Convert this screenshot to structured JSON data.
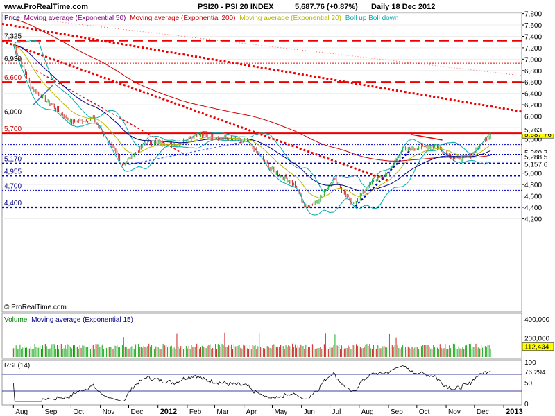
{
  "header": {
    "site": "www.ProRealTime.com",
    "title": "PSI20 - PSI 20 INDEX",
    "quote": "5,687.76 (+0.87%)",
    "period": "Daily  18 Dec 2012"
  },
  "watermark": "© ProRealTime.com",
  "legend": [
    {
      "label": "Price",
      "color": "#000080"
    },
    {
      "label": "Moving average (Exponential 50)",
      "color": "#800080"
    },
    {
      "label": "Moving average (Exponential 200)",
      "color": "#cc0000"
    },
    {
      "label": "Moving average (Exponential 20)",
      "color": "#b8b800"
    },
    {
      "label": "Boll up Boll down",
      "color": "#00aaaa"
    }
  ],
  "price_axis": {
    "ticks": [
      "7,800",
      "7,600",
      "7,400",
      "7,200",
      "7,000",
      "6,800",
      "6,600",
      "6,400",
      "6,200",
      "6,000",
      "5,800",
      "5,600",
      "5,400",
      "5,200",
      "5,000",
      "4,800",
      "4,600",
      "4,400",
      "4,200"
    ],
    "tags": [
      {
        "text": "5,687.76",
        "bg": "#ffff00",
        "fg": "#000000"
      },
      {
        "text": "5,763",
        "bg": "#ffffff",
        "fg": "#00aaaa"
      },
      {
        "text": "5,360.7",
        "bg": "#ffffff",
        "fg": "#800080"
      },
      {
        "text": "5,288.5",
        "bg": "#ffffff",
        "fg": "#cc0000"
      },
      {
        "text": "5,157.6",
        "bg": "#ffffff",
        "fg": "#00aaaa"
      }
    ]
  },
  "level_labels": [
    {
      "text": "7,325",
      "color": "#000000"
    },
    {
      "text": "6,930",
      "color": "#000000"
    },
    {
      "text": "6,600",
      "color": "#cc0000"
    },
    {
      "text": "6,000",
      "color": "#000000"
    },
    {
      "text": "5,700",
      "color": "#cc0000"
    },
    {
      "text": "5,170",
      "color": "#000080"
    },
    {
      "text": "4,955",
      "color": "#000080"
    },
    {
      "text": "4,700",
      "color": "#000080"
    },
    {
      "text": "4,400",
      "color": "#000080"
    }
  ],
  "volume_panel": {
    "legend_volume": "Volume",
    "legend_ma": "Moving average (Exponential 15)",
    "ticks": [
      "400,000",
      "200,000"
    ],
    "last": "112,434"
  },
  "rsi_panel": {
    "label": "RSI (14)",
    "ticks": [
      "100",
      "50",
      "0"
    ],
    "last": "76.294"
  },
  "months": [
    "Aug",
    "Sep",
    "Oct",
    "Nov",
    "Dec",
    "2012",
    "Feb",
    "Mar",
    "Apr",
    "May",
    "Jun",
    "Jul",
    "Aug",
    "Sep",
    "Oct",
    "Nov",
    "Dec",
    "2013"
  ],
  "chart_data": {
    "type": "line",
    "title": "PSI20 - PSI 20 INDEX",
    "approx_price_path": [
      {
        "x": "2011-08-01",
        "y": 7250
      },
      {
        "x": "2011-08-20",
        "y": 6500
      },
      {
        "x": "2011-09-10",
        "y": 6200
      },
      {
        "x": "2011-10-01",
        "y": 5900
      },
      {
        "x": "2011-10-25",
        "y": 5950
      },
      {
        "x": "2011-11-25",
        "y": 5150
      },
      {
        "x": "2011-12-20",
        "y": 5550
      },
      {
        "x": "2012-01-20",
        "y": 5500
      },
      {
        "x": "2012-02-10",
        "y": 5680
      },
      {
        "x": "2012-03-15",
        "y": 5600
      },
      {
        "x": "2012-04-05",
        "y": 5550
      },
      {
        "x": "2012-05-01",
        "y": 5050
      },
      {
        "x": "2012-05-25",
        "y": 4800
      },
      {
        "x": "2012-06-05",
        "y": 4400
      },
      {
        "x": "2012-06-20",
        "y": 4550
      },
      {
        "x": "2012-07-05",
        "y": 4900
      },
      {
        "x": "2012-07-25",
        "y": 4450
      },
      {
        "x": "2012-08-15",
        "y": 4850
      },
      {
        "x": "2012-09-01",
        "y": 5000
      },
      {
        "x": "2012-09-15",
        "y": 5400
      },
      {
        "x": "2012-10-05",
        "y": 5450
      },
      {
        "x": "2012-10-20",
        "y": 5480
      },
      {
        "x": "2012-11-10",
        "y": 5250
      },
      {
        "x": "2012-11-25",
        "y": 5280
      },
      {
        "x": "2012-12-18",
        "y": 5687.76
      }
    ],
    "horizontal_levels": [
      7325,
      6930,
      6600,
      6000,
      5700,
      5170,
      4955,
      4700,
      4400
    ],
    "ylim": [
      4100,
      7850
    ]
  }
}
